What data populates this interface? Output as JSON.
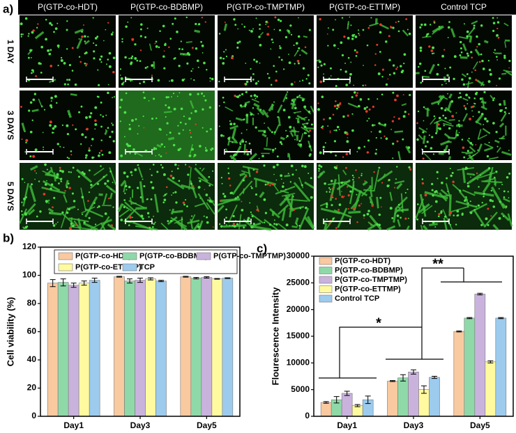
{
  "panel_a": {
    "label": "a)",
    "columns": [
      "P(GTP-co-HDT)",
      "P(GTP-co-BDBMP)",
      "P(GTP-co-TMPTMP)",
      "P(GTP-co-ETTMP)",
      "Control TCP"
    ],
    "rows": [
      "1 DAY",
      "3 DAYS",
      "5 DAYS"
    ]
  },
  "chart_data": [
    {
      "type": "bar",
      "panel_label": "b)",
      "y_label": "Cell viability (%)",
      "categories": [
        "Day1",
        "Day3",
        "Day5"
      ],
      "series": [
        {
          "name": "P(GTP-co-HDT)",
          "color": "#f9c9a0",
          "values": [
            94.5,
            99,
            99
          ],
          "errors": [
            2.5,
            0.3,
            0.3
          ]
        },
        {
          "name": "P(GTP-co-BDBMP)",
          "color": "#8fd9a8",
          "values": [
            95,
            96,
            98
          ],
          "errors": [
            2.5,
            1.5,
            0.5
          ]
        },
        {
          "name": "P(GTP-co-TMPTMP)",
          "color": "#c9b3dd",
          "values": [
            93,
            96.5,
            98.5
          ],
          "errors": [
            1.5,
            1.5,
            0.5
          ]
        },
        {
          "name": "P(GTP-co-ETTMP)",
          "color": "#fffaa0",
          "values": [
            94.5,
            97.5,
            97.5
          ],
          "errors": [
            1.5,
            0.8,
            0.3
          ]
        },
        {
          "name": "TCP",
          "color": "#9ccbee",
          "values": [
            96.5,
            96,
            98
          ],
          "errors": [
            1.5,
            0.5,
            0.3
          ]
        }
      ],
      "ylim": [
        0,
        120
      ],
      "yticks": [
        0,
        20,
        40,
        60,
        80,
        100,
        120
      ]
    },
    {
      "type": "bar",
      "panel_label": "c)",
      "y_label": "Flourescence Intensity",
      "categories": [
        "Day1",
        "Day3",
        "Day5"
      ],
      "series": [
        {
          "name": "P(GTP-co-HDT)",
          "color": "#f9c9a0",
          "values": [
            2600,
            6600,
            15900
          ],
          "errors": [
            150,
            100,
            100
          ]
        },
        {
          "name": "P(GTP-co-BDBMP)",
          "color": "#8fd9a8",
          "values": [
            3100,
            7200,
            18400
          ],
          "errors": [
            600,
            600,
            100
          ]
        },
        {
          "name": "P(GTP-co-TMPTMP)",
          "color": "#c9b3dd",
          "values": [
            4300,
            8300,
            22900
          ],
          "errors": [
            400,
            400,
            150
          ]
        },
        {
          "name": "P(GTP-co-ETTMP)",
          "color": "#fffaa0",
          "values": [
            2000,
            5000,
            10200
          ],
          "errors": [
            200,
            700,
            200
          ]
        },
        {
          "name": "Control TCP",
          "color": "#9ccbee",
          "values": [
            3100,
            7300,
            18400
          ],
          "errors": [
            700,
            200,
            100
          ]
        }
      ],
      "ylim": [
        0,
        30000
      ],
      "yticks": [
        0,
        5000,
        10000,
        15000,
        20000,
        25000,
        30000
      ],
      "annotations": [
        "*",
        "**"
      ]
    }
  ]
}
